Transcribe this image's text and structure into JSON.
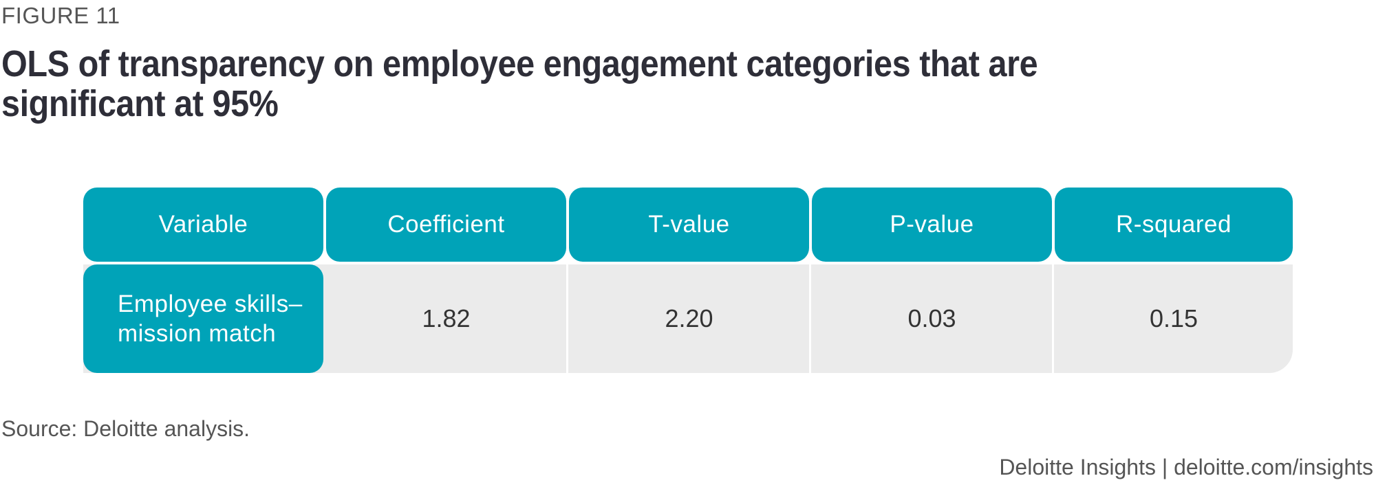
{
  "figure_label": "FIGURE 11",
  "title": "OLS of transparency on employee engagement categories that are significant at 95%",
  "source": "Source: Deloitte analysis.",
  "credit": "Deloitte Insights | deloitte.com/insights",
  "colors": {
    "header_fill": "#00a3b8",
    "cell_fill": "#ebebeb",
    "title_text": "#2e2e38"
  },
  "chart_data": {
    "type": "table",
    "columns": [
      "Variable",
      "Coefficient",
      "T-value",
      "P-value",
      "R-squared"
    ],
    "rows": [
      {
        "variable": "Employee skills–mission match",
        "coefficient": "1.82",
        "t_value": "2.20",
        "p_value": "0.03",
        "r_squared": "0.15"
      }
    ]
  }
}
